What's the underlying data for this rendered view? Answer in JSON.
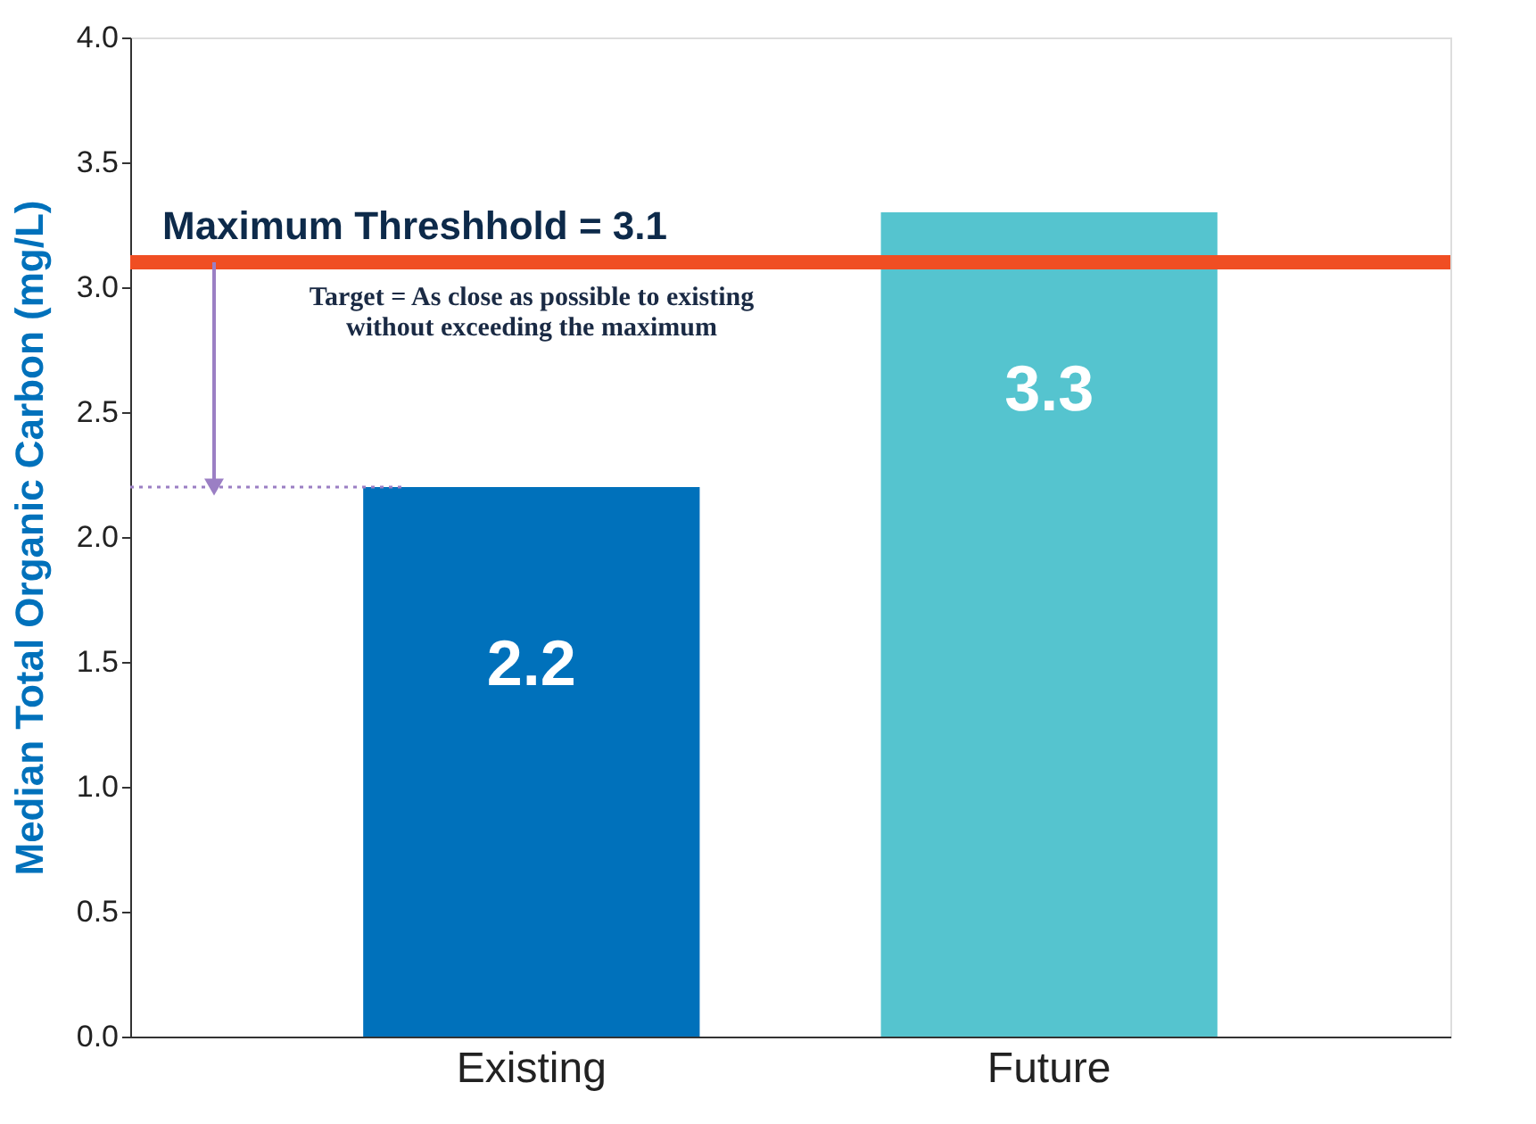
{
  "chart_data": {
    "type": "bar",
    "ylabel": "Median Total Organic Carbon (mg/L)",
    "categories": [
      "Existing",
      "Future"
    ],
    "values": [
      2.2,
      3.3
    ],
    "colors": [
      "#0071bb",
      "#55c4cf"
    ],
    "ylim": [
      0,
      4
    ],
    "yticks": [
      {
        "value": 0,
        "label": "0.0"
      },
      0.5,
      {
        "value": 1,
        "label": "1.0"
      },
      1.5,
      {
        "value": 2,
        "label": "2.0"
      },
      2.5,
      {
        "value": 3,
        "label": "3.0"
      },
      3.5,
      {
        "value": 4,
        "label": "4.0"
      }
    ],
    "grid": false,
    "data_labels": true,
    "ref_lines": [
      {
        "axis": "y",
        "value": 3.1,
        "label": "Maximum Threshhold = 3.1",
        "color": "#f04e23",
        "line_style": "solid"
      },
      {
        "axis": "y",
        "value": 2.2,
        "color": "#9b7fc4",
        "line_style": "dotted"
      }
    ],
    "annotations": [
      "Target = As close as possible to existing\nwithout exceeding the maximum"
    ]
  }
}
